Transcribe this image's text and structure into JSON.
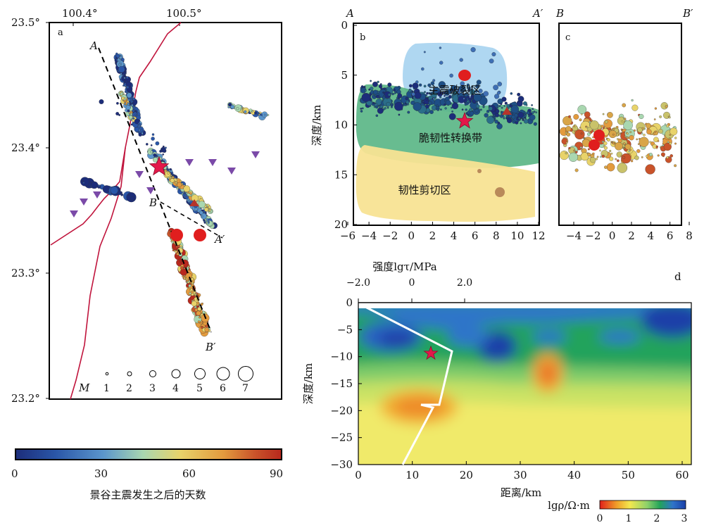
{
  "panel_a": {
    "label": "a",
    "top_ticks": [
      "100.4°",
      "100.5°"
    ],
    "left_ticks": [
      "23.5°",
      "23.4°",
      "23.3°",
      "23.2°"
    ],
    "profile_labels": {
      "A": "A",
      "A2": "A′",
      "B": "B",
      "B2": "B′"
    },
    "magnitude_legend": {
      "title": "M",
      "values": [
        "1",
        "2",
        "3",
        "4",
        "5",
        "6",
        "7"
      ]
    },
    "colorbar": {
      "ticks": [
        "0",
        "30",
        "60",
        "90"
      ],
      "label": "景谷主震发生之后的天数",
      "colors": [
        "#1c2d7a",
        "#2a56a8",
        "#5b96cc",
        "#a9d7b0",
        "#e8d36a",
        "#e39b3e",
        "#c9532a",
        "#b8281d"
      ]
    }
  },
  "panel_b": {
    "label": "b",
    "corner_labels": {
      "left": "A",
      "right": "A′"
    },
    "ylabel": "深度/km",
    "x_ticks": [
      "−6",
      "−4",
      "−2",
      "0",
      "2",
      "4",
      "6",
      "8",
      "10",
      "12"
    ],
    "y_ticks": [
      "0",
      "5",
      "10",
      "15",
      "20"
    ],
    "zones": {
      "rupture": {
        "label": "主震破裂区",
        "color": "#a6d3f0"
      },
      "transition": {
        "label": "脆韧性转换带",
        "color": "#58b584"
      },
      "shear": {
        "label": "韧性剪切区",
        "color": "#f8e394"
      }
    }
  },
  "panel_c": {
    "label": "c",
    "corner_labels": {
      "left": "B",
      "right": "B′"
    },
    "x_ticks": [
      "−4",
      "−2",
      "0",
      "2",
      "4",
      "6",
      "8"
    ]
  },
  "panel_d": {
    "label": "d",
    "strength_axis": {
      "label": "强度lgτ/MPa",
      "ticks": [
        "−2.0",
        "0",
        "2.0"
      ]
    },
    "ylabel": "深度/km",
    "xlabel": "距离/km",
    "x_ticks": [
      "0",
      "10",
      "20",
      "30",
      "40",
      "50",
      "60"
    ],
    "y_ticks": [
      "0",
      "−5",
      "−10",
      "−15",
      "−20",
      "−25",
      "−30"
    ],
    "resistivity_bar": {
      "label": "lgρ/Ω·m",
      "ticks": [
        "0",
        "1",
        "2",
        "3"
      ],
      "colors": [
        "#e0201b",
        "#f0a02a",
        "#f3e84e",
        "#8ed16a",
        "#22a35a",
        "#2f74c9",
        "#1a3fa8"
      ]
    }
  }
}
